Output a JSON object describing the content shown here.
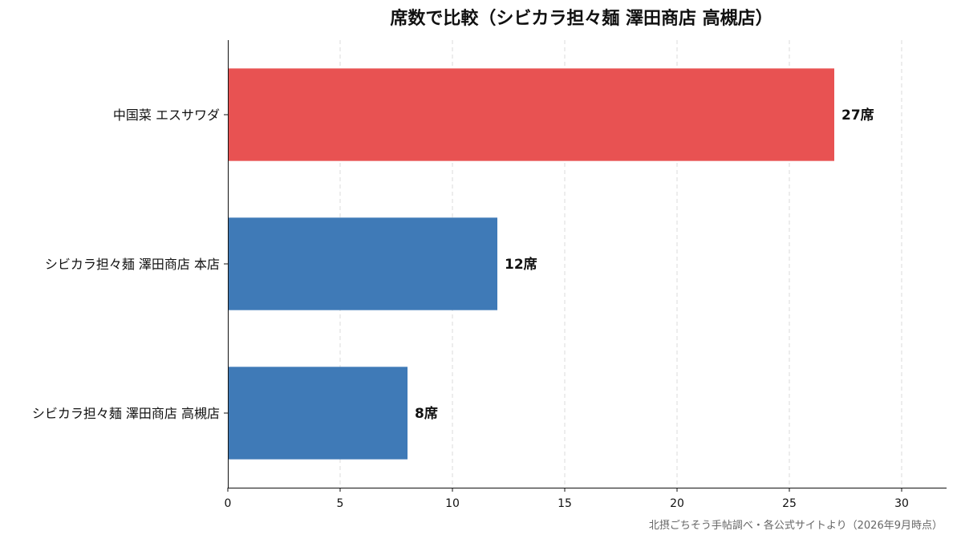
{
  "chart_data": {
    "type": "bar",
    "orientation": "horizontal",
    "title": "席数で比較（シビカラ担々麺 澤田商店 高槻店）",
    "categories": [
      "中国菜 エスサワダ",
      "シビカラ担々麺 澤田商店 本店",
      "シビカラ担々麺 澤田商店 高槻店"
    ],
    "values": [
      27,
      12,
      8
    ],
    "value_labels": [
      "27席",
      "12席",
      "8席"
    ],
    "bar_colors": [
      "#e85252",
      "#3f7ab7",
      "#3f7ab7"
    ],
    "xlim": [
      0,
      32
    ],
    "xticks": [
      0,
      5,
      10,
      15,
      20,
      25,
      30
    ],
    "xtick_labels": [
      "0",
      "5",
      "10",
      "15",
      "20",
      "25",
      "30"
    ],
    "grid": "vertical dashed",
    "xlabel": "",
    "ylabel": ""
  },
  "source": "北摂ごちそう手帖調べ・各公式サイトより（2026年9月時点）"
}
